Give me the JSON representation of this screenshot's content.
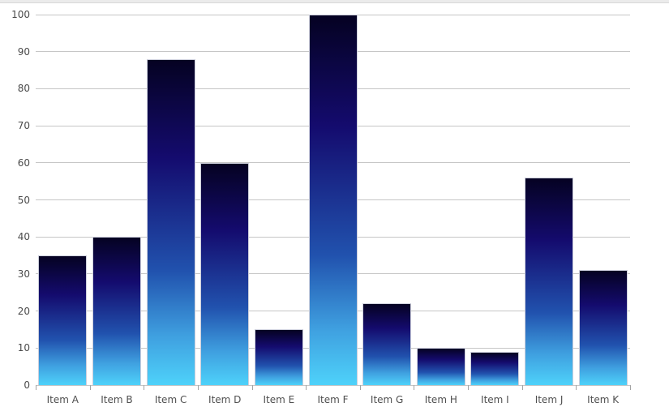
{
  "chart_data": {
    "type": "bar",
    "title": "",
    "xlabel": "",
    "ylabel": "",
    "categories": [
      "Item A",
      "Item B",
      "Item C",
      "Item D",
      "Item E",
      "Item F",
      "Item G",
      "Item H",
      "Item I",
      "Item J",
      "Item K"
    ],
    "values": [
      35,
      40,
      88,
      60,
      15,
      100,
      22,
      10,
      9,
      56,
      31
    ],
    "ylim": [
      0,
      100
    ],
    "ytick_interval": 10,
    "ytick_labels": [
      "0",
      "10",
      "20",
      "30",
      "40",
      "50",
      "60",
      "70",
      "80",
      "90",
      "100"
    ],
    "grid": "horizontal",
    "legend": false,
    "colors": {
      "bar_gradient_top": "#050222",
      "bar_gradient_upper": "#140b6e",
      "bar_gradient_lower": "#2152ae",
      "bar_gradient_mid_bottom": "#3fa0e0",
      "bar_gradient_bottom": "#4ed2fa",
      "bar_border": "#cdcfdc",
      "gridline": "#c6c6c6",
      "axis_tick": "#a3a3a3",
      "axis_label": "#4a4a4a",
      "top_strip": "#ebebeb"
    }
  }
}
